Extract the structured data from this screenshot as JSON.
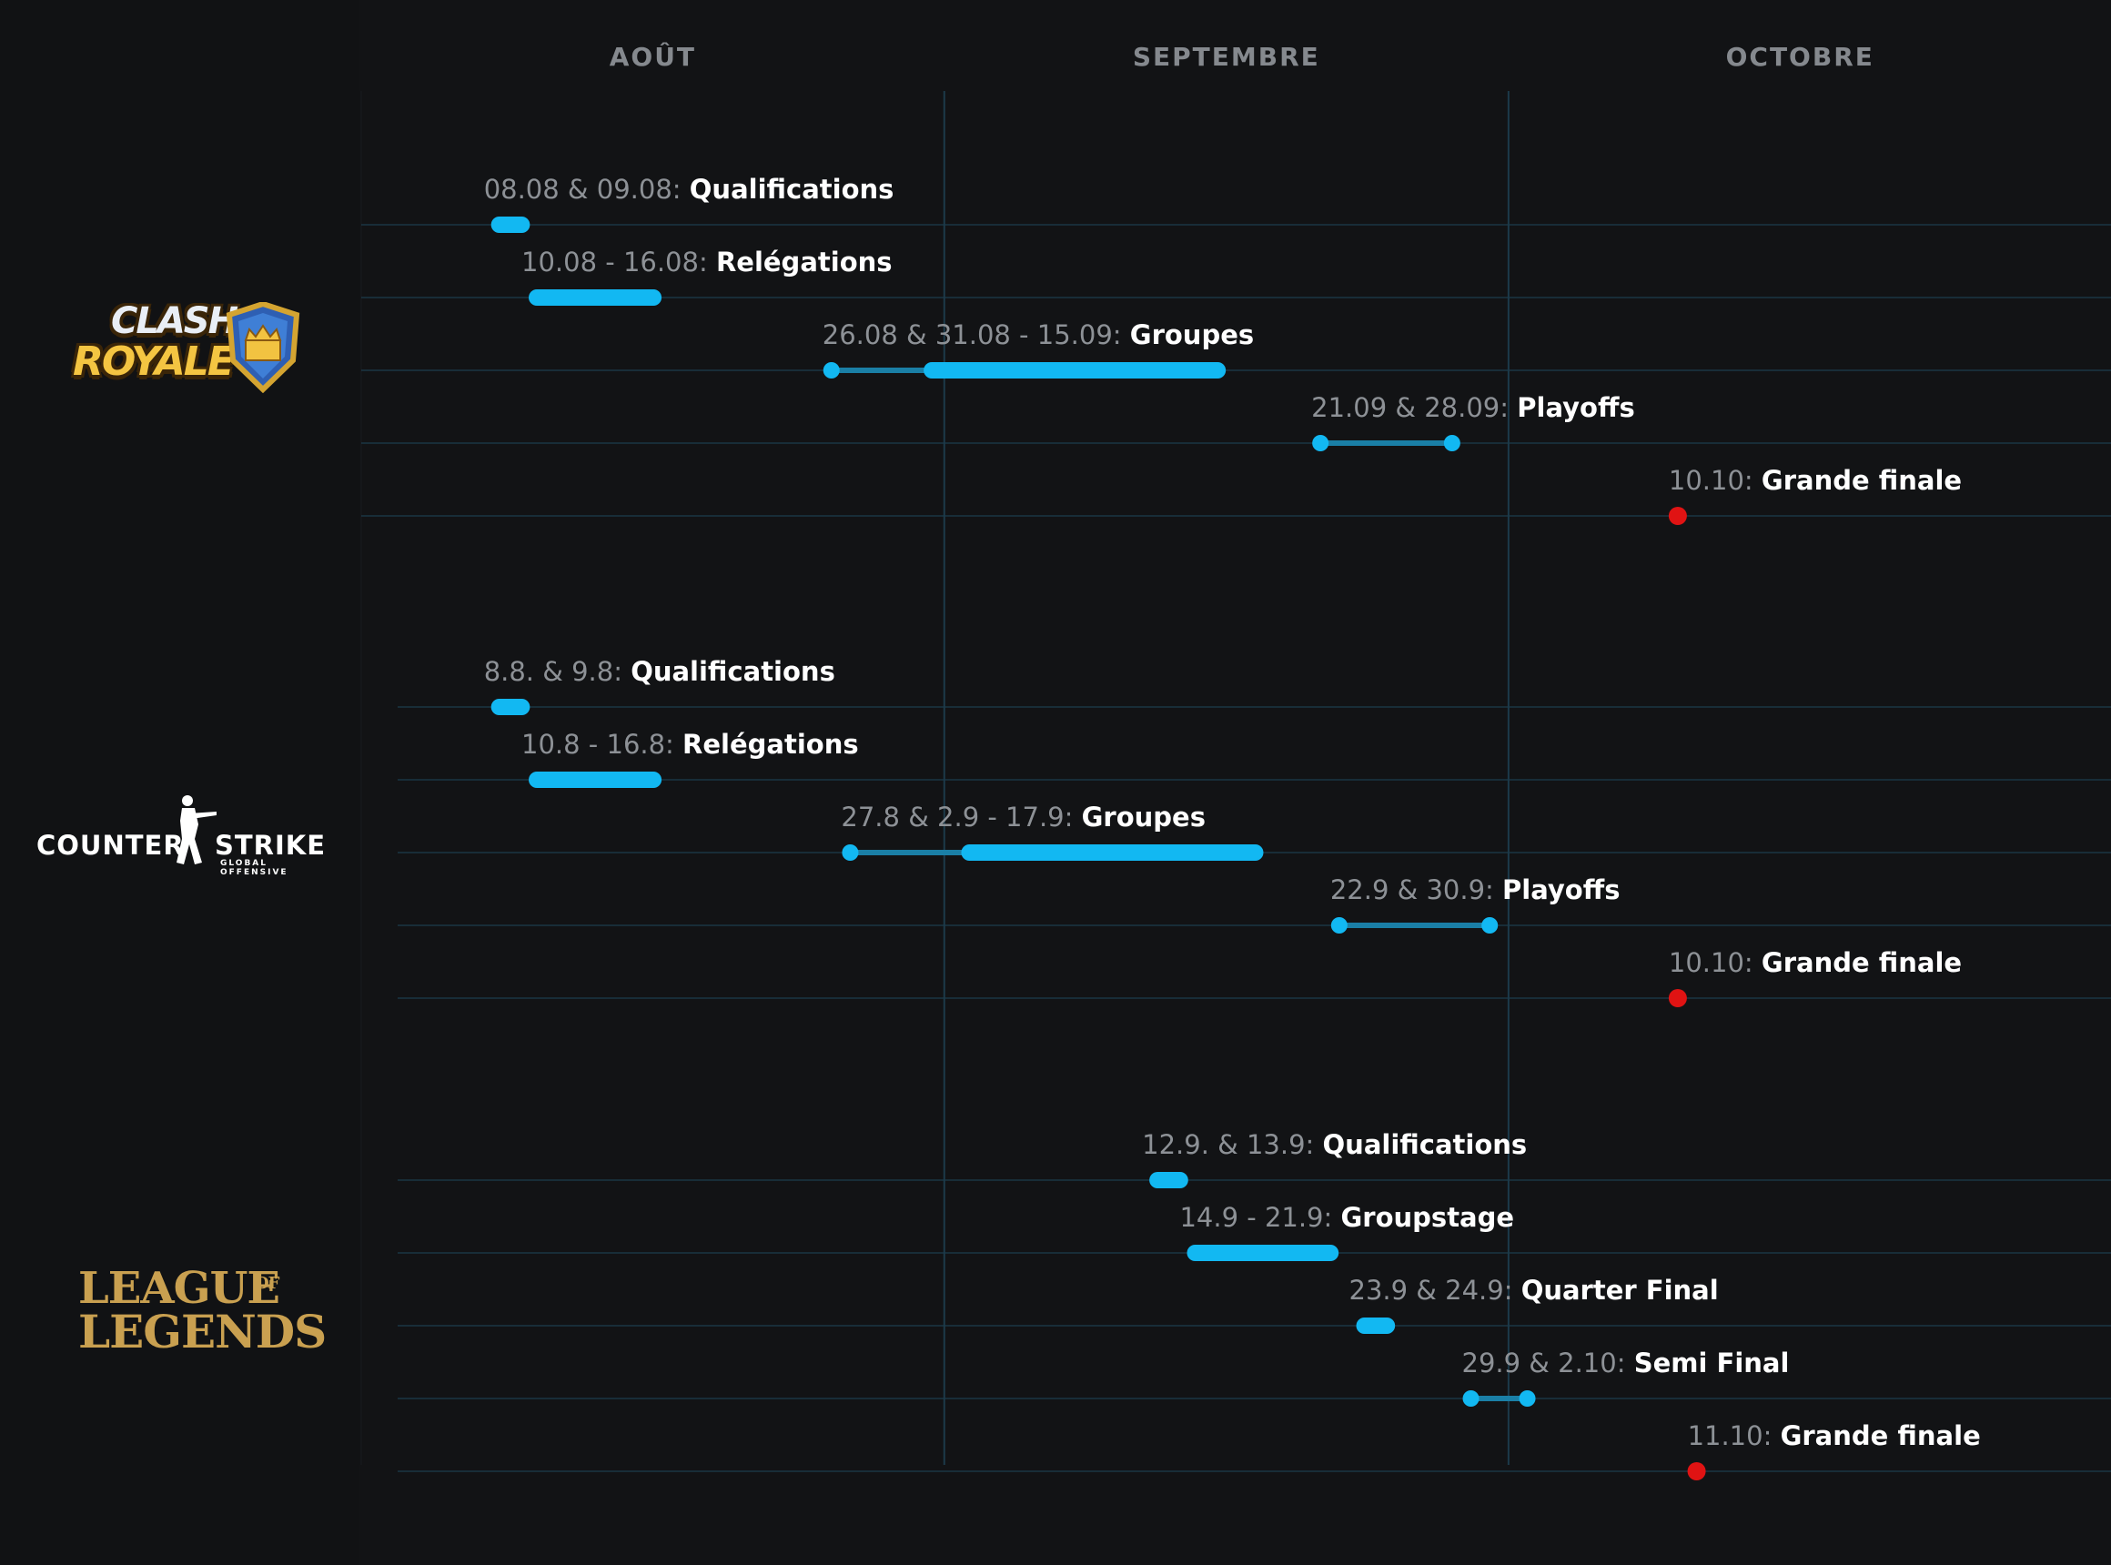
{
  "chart_data": {
    "type": "timeline",
    "months": [
      "AOÛT",
      "SEPTEMBRE",
      "OCTOBRE"
    ],
    "games": [
      {
        "name": "Clash Royale",
        "logo_text": [
          "CLASH",
          "ROYALE"
        ],
        "events": [
          {
            "date_label": "08.08 & 09.08:",
            "name": "Qualifications",
            "segments": [
              [
                "2020-08-08",
                "2020-08-09"
              ]
            ],
            "dots": []
          },
          {
            "date_label": "10.08 - 16.08:",
            "name": "Relégations",
            "segments": [
              [
                "2020-08-10",
                "2020-08-16"
              ]
            ],
            "dots": []
          },
          {
            "date_label": "26.08 & 31.08 - 15.09:",
            "name": "Groupes",
            "segments": [
              [
                "2020-08-31",
                "2020-09-15"
              ]
            ],
            "dots": [
              "2020-08-26"
            ],
            "connector": [
              "2020-08-26",
              "2020-08-31"
            ]
          },
          {
            "date_label": "21.09 & 28.09:",
            "name": "Playoffs",
            "segments": [],
            "dots": [
              "2020-09-21",
              "2020-09-28"
            ],
            "connector": [
              "2020-09-21",
              "2020-09-28"
            ]
          },
          {
            "date_label": "10.10:",
            "name": "Grande finale",
            "segments": [],
            "dots": [],
            "final": "2020-10-10"
          }
        ]
      },
      {
        "name": "Counter-Strike: Global Offensive",
        "logo_text": [
          "COUNTER",
          "STRIKE",
          "GLOBAL OFFENSIVE"
        ],
        "events": [
          {
            "date_label": "8.8. & 9.8:",
            "name": "Qualifications",
            "segments": [
              [
                "2020-08-08",
                "2020-08-09"
              ]
            ],
            "dots": []
          },
          {
            "date_label": "10.8 - 16.8:",
            "name": "Relégations",
            "segments": [
              [
                "2020-08-10",
                "2020-08-16"
              ]
            ],
            "dots": []
          },
          {
            "date_label": "27.8 & 2.9 - 17.9:",
            "name": "Groupes",
            "segments": [
              [
                "2020-09-02",
                "2020-09-17"
              ]
            ],
            "dots": [
              "2020-08-27"
            ],
            "connector": [
              "2020-08-27",
              "2020-09-02"
            ]
          },
          {
            "date_label": "22.9 & 30.9:",
            "name": "Playoffs",
            "segments": [],
            "dots": [
              "2020-09-22",
              "2020-09-30"
            ],
            "connector": [
              "2020-09-22",
              "2020-09-30"
            ]
          },
          {
            "date_label": "10.10:",
            "name": "Grande finale",
            "segments": [],
            "dots": [],
            "final": "2020-10-10"
          }
        ]
      },
      {
        "name": "League of Legends",
        "logo_text": [
          "LEAGUE",
          "OF",
          "LEGENDS"
        ],
        "events": [
          {
            "date_label": "12.9. & 13.9:",
            "name": "Qualifications",
            "segments": [
              [
                "2020-09-12",
                "2020-09-13"
              ]
            ],
            "dots": []
          },
          {
            "date_label": "14.9 - 21.9:",
            "name": "Groupstage",
            "segments": [
              [
                "2020-09-14",
                "2020-09-21"
              ]
            ],
            "dots": []
          },
          {
            "date_label": "23.9 & 24.9:",
            "name": "Quarter Final",
            "segments": [
              [
                "2020-09-23",
                "2020-09-24"
              ]
            ],
            "dots": []
          },
          {
            "date_label": "29.9 & 2.10:",
            "name": "Semi Final",
            "segments": [],
            "dots": [
              "2020-09-29",
              "2020-10-02"
            ],
            "connector": [
              "2020-09-29",
              "2020-10-02"
            ]
          },
          {
            "date_label": "11.10:",
            "name": "Grande finale",
            "segments": [],
            "dots": [],
            "final": "2020-10-11"
          }
        ]
      }
    ],
    "colors": {
      "bar": "#12b8f2",
      "connector": "#1a7fa6",
      "final": "#e01313",
      "gridline": "#1c3a4a",
      "month_label": "#85898e",
      "date_text": "#8d9196",
      "event_text": "#ffffff"
    }
  }
}
